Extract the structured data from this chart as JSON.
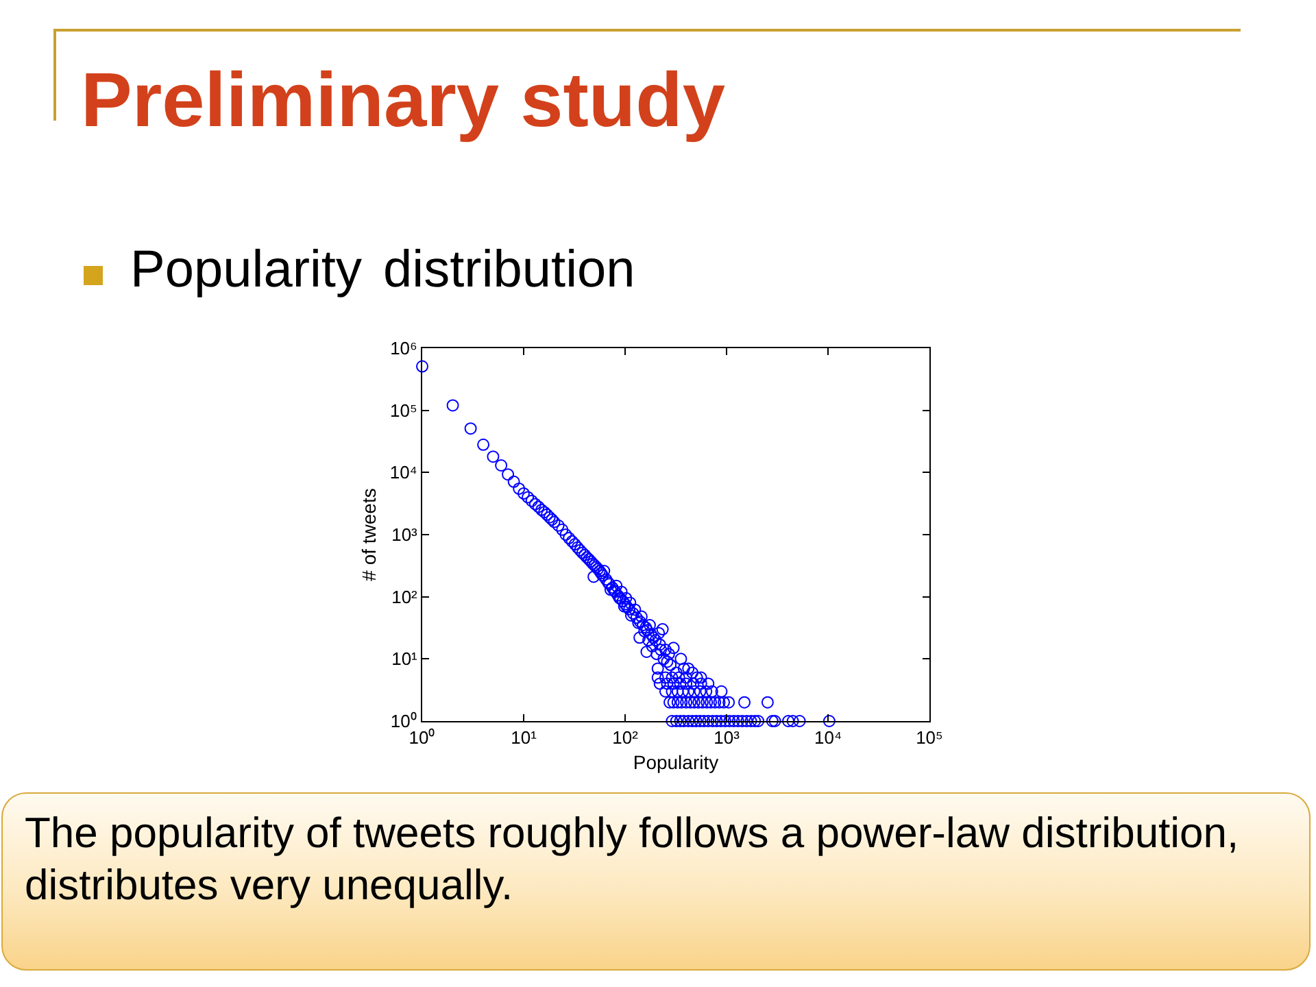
{
  "chart_data": {
    "type": "scatter",
    "title": "Preliminary study",
    "subtitle": "Popularity distribution",
    "xlabel": "Popularity",
    "ylabel": "# of tweets",
    "annotations": [
      "The popularity of tweets roughly follows a power-law distribution, distributes very unequally."
    ],
    "x": [
      1,
      2,
      3,
      4,
      5,
      6,
      7,
      8,
      9,
      10,
      11,
      12,
      13,
      14,
      15,
      16,
      17,
      18,
      19,
      20,
      22,
      24,
      26,
      28,
      30,
      32,
      34,
      36,
      38,
      40,
      42,
      44,
      46,
      48,
      49,
      50,
      52,
      54,
      56,
      58,
      60,
      62,
      65,
      68,
      70,
      72,
      75,
      78,
      80,
      82,
      85,
      88,
      90,
      92,
      95,
      98,
      100,
      102,
      105,
      110,
      112,
      115,
      120,
      125,
      130,
      135,
      139,
      140,
      145,
      150,
      155,
      160,
      163,
      165,
      170,
      175,
      180,
      185,
      190,
      200,
      205,
      210,
      215,
      220,
      225,
      234,
      240,
      250,
      260,
      270,
      280,
      300,
      320,
      355,
      380,
      420,
      460,
      510,
      560,
      660,
      210,
      250,
      290,
      340,
      400,
      220,
      260,
      300,
      350,
      400,
      470,
      560,
      250,
      290,
      330,
      370,
      420,
      480,
      550,
      630,
      720,
      890,
      275,
      300,
      330,
      360,
      400,
      440,
      480,
      530,
      580,
      640,
      700,
      770,
      850,
      940,
      1050,
      1500,
      2540,
      290,
      320,
      350,
      380,
      420,
      460,
      500,
      550,
      600,
      660,
      730,
      800,
      880,
      970,
      1070,
      1180,
      1300,
      1430,
      1580,
      1740,
      1900,
      2050,
      2830,
      3000,
      4060,
      4500,
      5250,
      10300
    ],
    "series": [
      {
        "color": "#0000ff",
        "values": [
          510000,
          120000,
          51000,
          28000,
          18000,
          13000,
          9300,
          7100,
          5500,
          4600,
          4000,
          3500,
          3100,
          2800,
          2500,
          2300,
          2100,
          1900,
          1750,
          1600,
          1400,
          1200,
          1000,
          880,
          780,
          700,
          620,
          560,
          510,
          470,
          430,
          400,
          370,
          340,
          210,
          320,
          300,
          280,
          260,
          240,
          220,
          260,
          190,
          170,
          160,
          130,
          140,
          125,
          120,
          150,
          105,
          95,
          94,
          120,
          85,
          70,
          76,
          95,
          68,
          63,
          80,
          50,
          54,
          62,
          46,
          38,
          22,
          40,
          48,
          35,
          28,
          32,
          13,
          29,
          20,
          35,
          25,
          16,
          22,
          20,
          12,
          7,
          26,
          17,
          14,
          30,
          10,
          14,
          9,
          12,
          8,
          15,
          6,
          10,
          7,
          7,
          6,
          5,
          5,
          4,
          5,
          5,
          5,
          5,
          5,
          4,
          4,
          4,
          4,
          4,
          4,
          4,
          3,
          3,
          3,
          3,
          3,
          3,
          3,
          3,
          3,
          3,
          2,
          2,
          2,
          2,
          2,
          2,
          2,
          2,
          2,
          2,
          2,
          2,
          2,
          2,
          2,
          2,
          2,
          1,
          1,
          1,
          1,
          1,
          1,
          1,
          1,
          1,
          1,
          1,
          1,
          1,
          1,
          1,
          1,
          1,
          1,
          1,
          1,
          1,
          1,
          1,
          1,
          1,
          1,
          1,
          1
        ]
      }
    ],
    "xlim": [
      1,
      100000
    ],
    "ylim": [
      1,
      1000000
    ],
    "xticks": [
      {
        "value": 1,
        "label": "10⁰"
      },
      {
        "value": 10,
        "label": "10¹"
      },
      {
        "value": 100,
        "label": "10²"
      },
      {
        "value": 1000,
        "label": "10³"
      },
      {
        "value": 10000,
        "label": "10⁴"
      },
      {
        "value": 100000,
        "label": "10⁵"
      }
    ],
    "yticks": [
      {
        "value": 1,
        "label": "10⁰"
      },
      {
        "value": 10,
        "label": "10¹"
      },
      {
        "value": 100,
        "label": "10²"
      },
      {
        "value": 1000,
        "label": "10³"
      },
      {
        "value": 10000,
        "label": "10⁴"
      },
      {
        "value": 100000,
        "label": "10⁵"
      },
      {
        "value": 1000000,
        "label": "10⁶"
      }
    ],
    "log": "xy",
    "grid": false,
    "marker": "circle"
  }
}
